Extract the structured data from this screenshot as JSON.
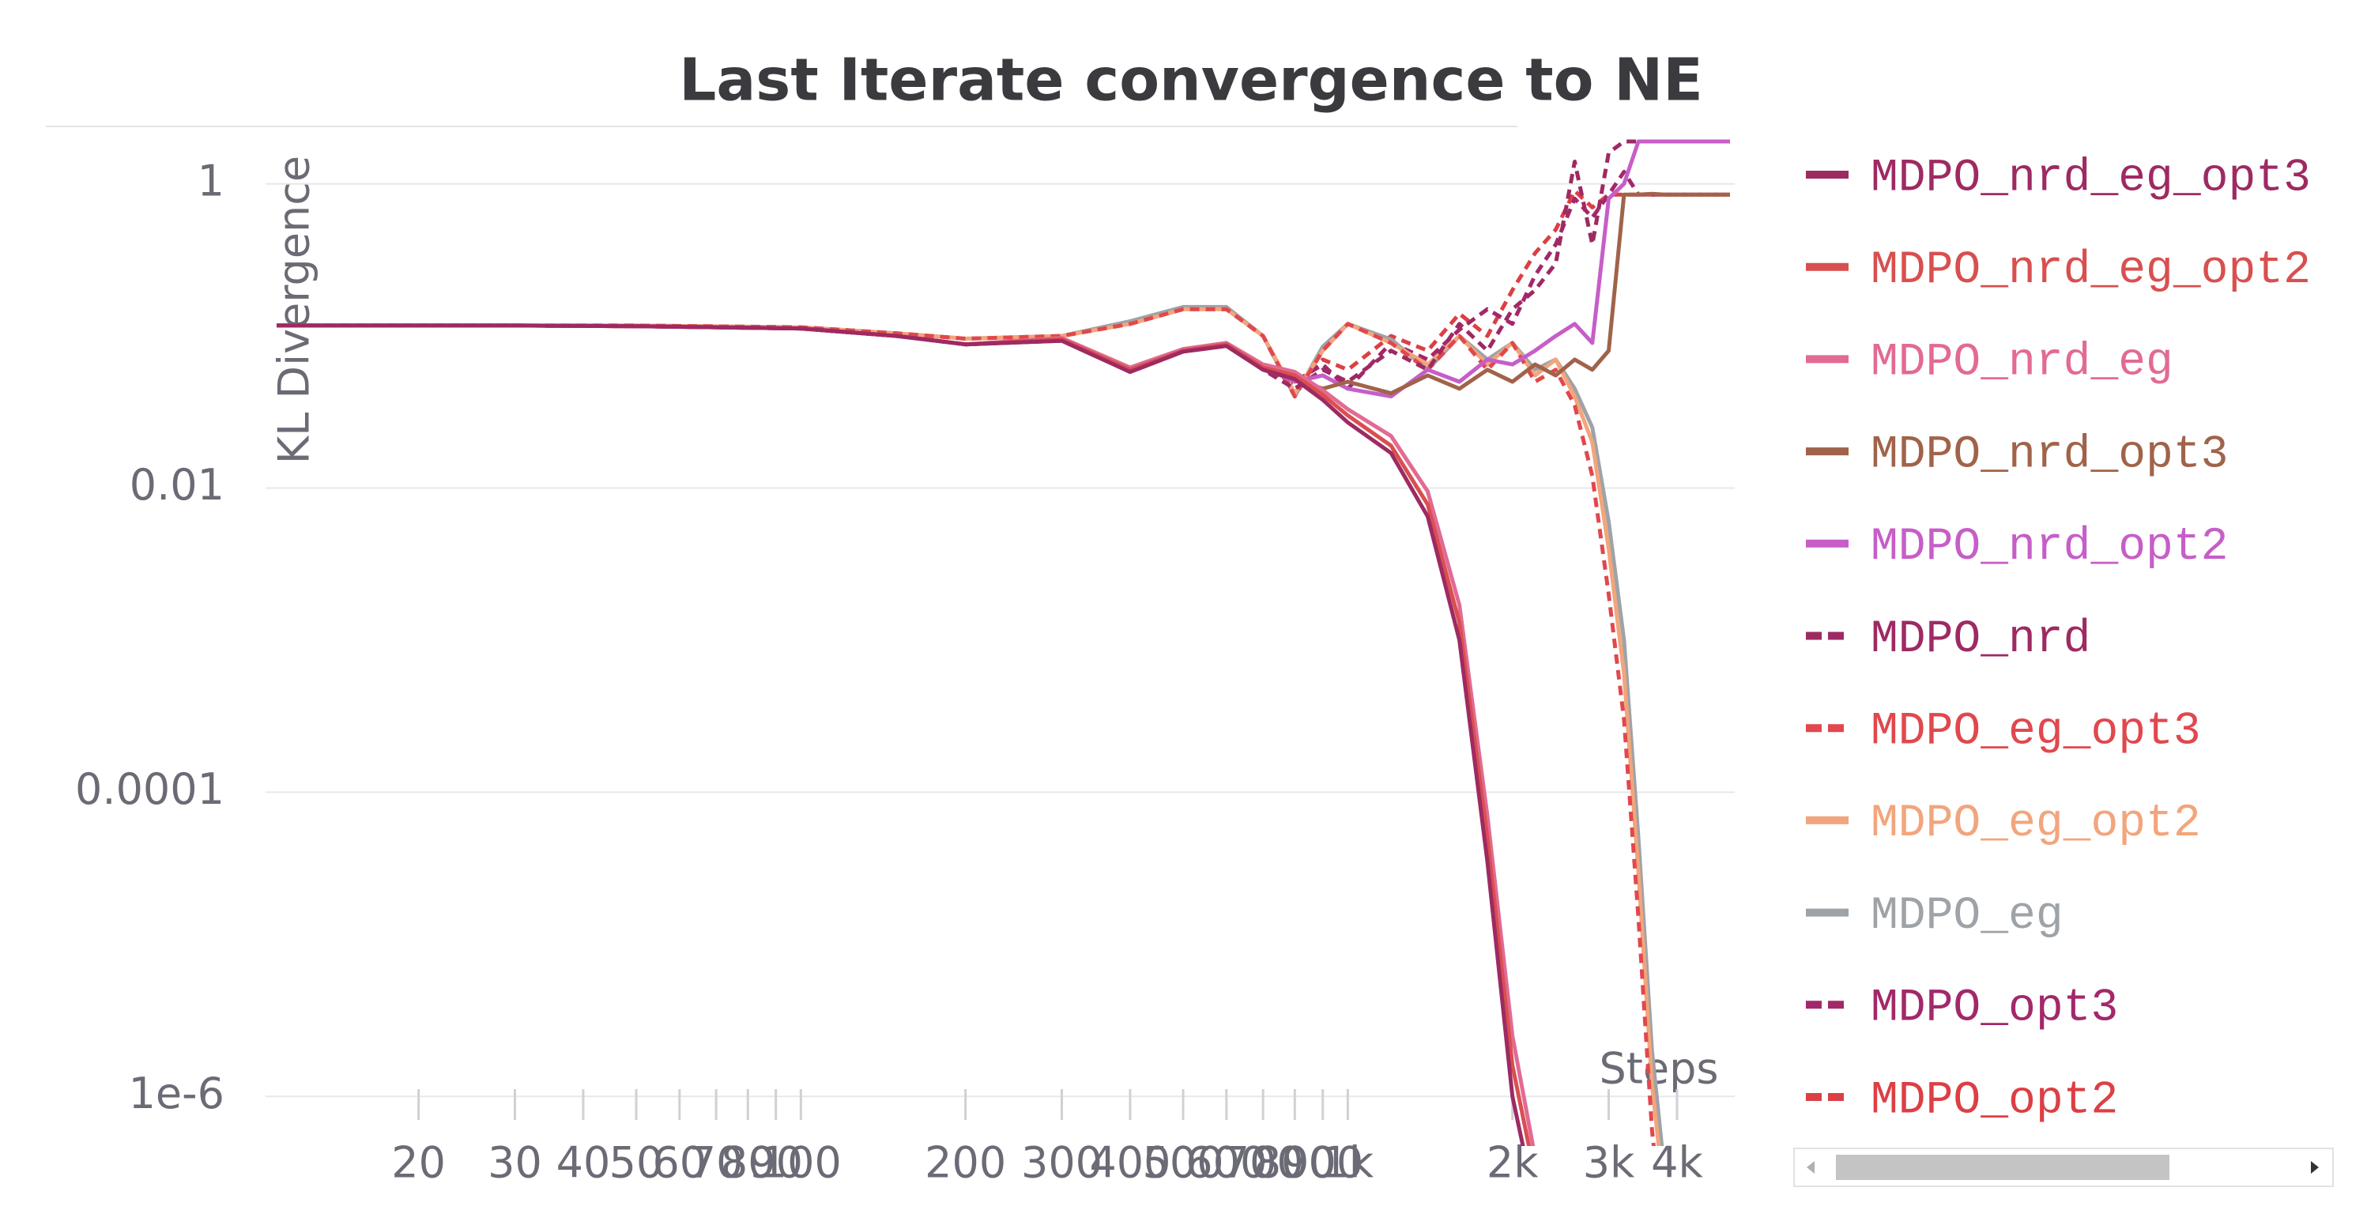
{
  "chart_data": {
    "type": "line",
    "title": "Last Iterate convergence to NE",
    "x_label": "Steps",
    "y_label": "KL Divergence",
    "log_x": true,
    "log_y": true,
    "grid": true,
    "xlim": [
      10.5,
      5100
    ],
    "ylim": [
      6e-07,
      2.3
    ],
    "xticks": [
      20,
      30,
      40,
      50,
      60,
      70,
      80,
      90,
      100,
      200,
      300,
      400,
      500,
      600,
      700,
      800,
      900,
      {
        "value": 1000,
        "label": "1k"
      },
      {
        "value": 2000,
        "label": "2k"
      },
      {
        "value": 3000,
        "label": "3k"
      },
      {
        "value": 4000,
        "label": "4k"
      }
    ],
    "yticks": [
      0.01,
      0.0001,
      1,
      {
        "value": 1e-06,
        "label": "1e-6"
      }
    ],
    "x": [
      11,
      20,
      30,
      50,
      100,
      150,
      200,
      300,
      400,
      500,
      600,
      700,
      800,
      900,
      1000,
      1200,
      1400,
      1600,
      1800,
      2000,
      2200,
      2400,
      2600,
      2800,
      3000,
      3200,
      3400,
      3600,
      3800,
      4000,
      4500,
      5000
    ],
    "series": [
      {
        "name": "MDPO_nrd_eg_opt3",
        "color": "#9e2a62",
        "dash": false,
        "values": [
          0.117,
          0.117,
          0.117,
          0.116,
          0.112,
          0.1,
          0.088,
          0.093,
          0.058,
          0.079,
          0.086,
          0.06,
          0.052,
          0.038,
          0.027,
          0.017,
          0.0065,
          0.001,
          3.5e-05,
          1e-06,
          2e-07,
          null,
          null,
          null,
          null,
          null,
          null,
          null,
          null,
          null,
          null,
          null
        ]
      },
      {
        "name": "MDPO_nrd_eg_opt2",
        "color": "#d94f4f",
        "dash": false,
        "values": [
          0.117,
          0.117,
          0.117,
          0.116,
          0.112,
          0.1,
          0.088,
          0.095,
          0.06,
          0.08,
          0.088,
          0.062,
          0.055,
          0.041,
          0.03,
          0.019,
          0.0078,
          0.0013,
          5e-05,
          1.6e-06,
          3e-07,
          null,
          null,
          null,
          null,
          null,
          null,
          null,
          null,
          null,
          null,
          null
        ]
      },
      {
        "name": "MDPO_nrd_eg",
        "color": "#e26a93",
        "dash": false,
        "values": [
          0.117,
          0.117,
          0.117,
          0.116,
          0.112,
          0.1,
          0.088,
          0.097,
          0.062,
          0.082,
          0.09,
          0.065,
          0.058,
          0.044,
          0.033,
          0.022,
          0.0095,
          0.0017,
          7e-05,
          2.5e-06,
          4e-07,
          null,
          null,
          null,
          null,
          null,
          null,
          null,
          null,
          null,
          null,
          null
        ]
      },
      {
        "name": "MDPO_nrd_opt3",
        "color": "#a0634a",
        "dash": false,
        "values": [
          0.117,
          0.117,
          0.117,
          0.116,
          0.112,
          0.1,
          0.088,
          0.093,
          0.058,
          0.079,
          0.086,
          0.06,
          0.052,
          0.045,
          0.05,
          0.042,
          0.055,
          0.045,
          0.06,
          0.05,
          0.065,
          0.055,
          0.07,
          0.06,
          0.08,
          0.85,
          0.85,
          0.86,
          0.85,
          0.85,
          0.85,
          0.85
        ]
      },
      {
        "name": "MDPO_nrd_opt2",
        "color": "#c65ec8",
        "dash": false,
        "values": [
          0.117,
          0.117,
          0.117,
          0.116,
          0.112,
          0.1,
          0.088,
          0.095,
          0.06,
          0.08,
          0.088,
          0.062,
          0.05,
          0.055,
          0.045,
          0.04,
          0.06,
          0.05,
          0.07,
          0.065,
          0.08,
          0.1,
          0.12,
          0.09,
          0.8,
          1.0,
          1.9,
          1.9,
          1.9,
          1.9,
          1.9,
          1.9
        ]
      },
      {
        "name": "MDPO_nrd",
        "color": "#9e2a62",
        "dash": true,
        "values": [
          0.117,
          0.117,
          0.117,
          0.116,
          0.112,
          0.1,
          0.088,
          0.093,
          0.06,
          0.08,
          0.088,
          0.06,
          0.045,
          0.06,
          0.05,
          0.08,
          0.06,
          0.12,
          0.08,
          0.15,
          0.2,
          0.3,
          1.4,
          0.4,
          1.6,
          1.9,
          1.9,
          1.9,
          1.9,
          1.9,
          1.9,
          1.9
        ]
      },
      {
        "name": "MDPO_eg_opt3",
        "color": "#e0484d",
        "dash": true,
        "values": [
          0.117,
          0.117,
          0.117,
          0.117,
          0.114,
          0.104,
          0.096,
          0.1,
          0.12,
          0.15,
          0.15,
          0.1,
          0.04,
          0.08,
          0.12,
          0.09,
          0.06,
          0.1,
          0.06,
          0.09,
          0.05,
          0.06,
          0.035,
          0.012,
          0.002,
          0.0003,
          1.5e-05,
          6e-07,
          1e-07,
          null,
          null,
          null
        ]
      },
      {
        "name": "MDPO_eg_opt2",
        "color": "#f2a57c",
        "dash": false,
        "values": [
          0.117,
          0.117,
          0.117,
          0.117,
          0.114,
          0.104,
          0.096,
          0.1,
          0.12,
          0.15,
          0.15,
          0.1,
          0.042,
          0.08,
          0.12,
          0.09,
          0.065,
          0.1,
          0.065,
          0.09,
          0.055,
          0.07,
          0.04,
          0.02,
          0.004,
          0.0006,
          3e-05,
          1.2e-06,
          2e-07,
          null,
          null,
          null
        ]
      },
      {
        "name": "MDPO_eg",
        "color": "#9ea3a8",
        "dash": false,
        "values": [
          0.117,
          0.117,
          0.117,
          0.117,
          0.114,
          0.104,
          0.096,
          0.1,
          0.125,
          0.155,
          0.155,
          0.1,
          0.04,
          0.085,
          0.12,
          0.095,
          0.06,
          0.1,
          0.07,
          0.09,
          0.06,
          0.07,
          0.045,
          0.025,
          0.006,
          0.001,
          5e-05,
          2e-06,
          3e-07,
          null,
          null,
          null
        ]
      },
      {
        "name": "MDPO_opt3",
        "color": "#a3286a",
        "dash": true,
        "values": [
          0.117,
          0.117,
          0.117,
          0.116,
          0.112,
          0.1,
          0.088,
          0.095,
          0.058,
          0.079,
          0.087,
          0.06,
          0.05,
          0.065,
          0.045,
          0.09,
          0.07,
          0.11,
          0.15,
          0.12,
          0.25,
          0.4,
          0.8,
          0.6,
          0.85,
          1.2,
          0.85,
          0.85,
          0.85,
          0.85,
          0.85,
          0.85
        ]
      },
      {
        "name": "MDPO_opt2",
        "color": "#dc3f44",
        "dash": true,
        "values": [
          0.117,
          0.117,
          0.117,
          0.116,
          0.112,
          0.1,
          0.088,
          0.094,
          0.06,
          0.08,
          0.086,
          0.062,
          0.048,
          0.07,
          0.06,
          0.1,
          0.08,
          0.14,
          0.1,
          0.2,
          0.35,
          0.5,
          0.9,
          0.7,
          0.85,
          0.85,
          0.85,
          0.85,
          0.85,
          0.85,
          0.85,
          0.85
        ]
      }
    ]
  }
}
